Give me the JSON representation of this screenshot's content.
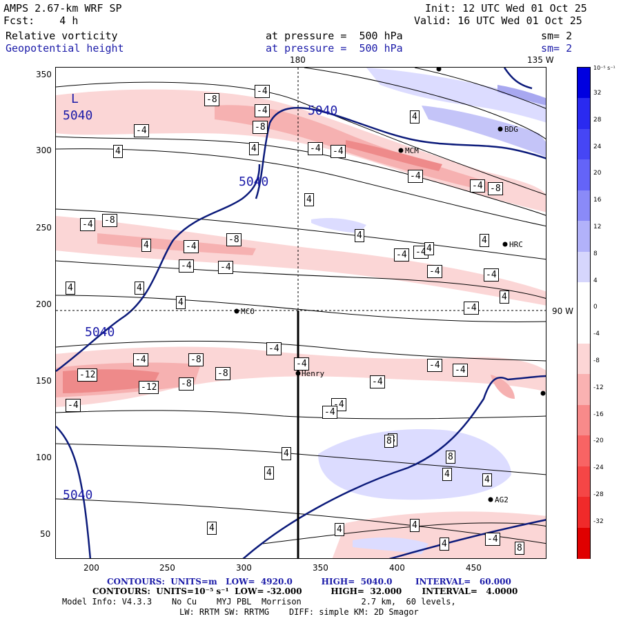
{
  "header": {
    "model": "AMPS 2.67-km WRF SP",
    "init": "Init: 12 UTC Wed 01 Oct 25",
    "fcst": "Fcst:    4 h",
    "valid": "Valid: 16 UTC Wed 01 Oct 25",
    "field1_name": "Relative vorticity",
    "field1_pressure": "at pressure =  500 hPa",
    "field1_sm": "sm= 2",
    "field2_name": "Geopotential height",
    "field2_pressure": "at pressure =  500 hPa",
    "field2_sm": "sm= 2"
  },
  "map": {
    "lon_labels": {
      "top_180": "180",
      "top_135w": "135 W",
      "right_90w": "90 W"
    },
    "x_ticks": [
      "200",
      "250",
      "300",
      "350",
      "400",
      "450"
    ],
    "y_ticks": [
      "350",
      "300",
      "250",
      "200",
      "150",
      "100",
      "50"
    ],
    "low_label": "L",
    "height_labels": [
      "5040",
      "5040",
      "5040",
      "5040",
      "5040"
    ],
    "vorticity_labels": [
      "-4",
      "-8",
      "-4",
      "-8",
      "-4",
      "4",
      "4",
      "-4",
      "-4",
      "4",
      "-4",
      "-4",
      "-8",
      "4",
      "-4",
      "-4",
      "-8",
      "4",
      "-8",
      "4",
      "-4",
      "-4",
      "4",
      "4",
      "-4",
      "-4",
      "4",
      "-4",
      "4",
      "4",
      "-4",
      "4",
      "-4",
      "-8",
      "-4",
      "-12",
      "-12",
      "-8",
      "-8",
      "-4",
      "-4",
      "-4",
      "-4",
      "-4",
      "-4",
      "-4",
      "8",
      "-4",
      "8",
      "8",
      "4",
      "4",
      "4",
      "4",
      "4",
      "4",
      "4",
      "4",
      "-4",
      "8"
    ],
    "stations": [
      "BDG",
      "MCM",
      "HRC",
      "MCO",
      "Henry",
      "AG2"
    ],
    "colors": {
      "height_contour": "#0b1a7a",
      "positive": "#2222ff",
      "negative": "#ff2222"
    }
  },
  "colorbar": {
    "units": "10⁻⁵ s⁻¹",
    "labels": [
      "32",
      "28",
      "24",
      "20",
      "16",
      "12",
      "8",
      "4",
      "0",
      "-4",
      "-8",
      "-12",
      "-16",
      "-20",
      "-24",
      "-28",
      "-32"
    ]
  },
  "footer": {
    "line1": "CONTOURS:  UNITS=m   LOW=  4920.0          HIGH=  5040.0        INTERVAL=   60.000",
    "line2": "CONTOURS:  UNITS=10⁻⁵ s⁻¹  LOW= -32.000          HIGH=  32.000       INTERVAL=   4.0000",
    "line3": "Model Info: V4.3.3    No Cu    MYJ PBL  Morrison            2.7 km,  60 levels,",
    "line4": "LW: RRTM SW: RRTMG    DIFF: simple KM: 2D Smagor"
  }
}
